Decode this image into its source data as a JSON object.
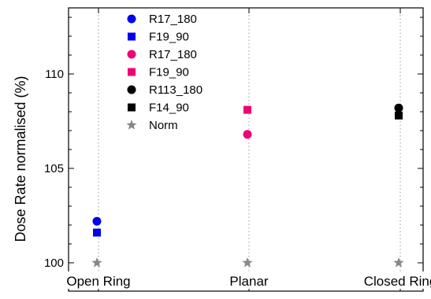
{
  "chart_data": {
    "type": "scatter",
    "categories": [
      "Open Ring",
      "Planar",
      "Closed Ring"
    ],
    "ylabel": "Dose Rate normalised (%)",
    "ylim": [
      98.5,
      113.5
    ],
    "yticks": [
      100,
      105,
      110
    ],
    "grid": "vertical dotted",
    "legend_position": "top-left",
    "series": [
      {
        "name": "R17_180",
        "marker": "circle",
        "color": "#0000ee",
        "values": [
          102.2,
          null,
          null
        ]
      },
      {
        "name": "F19_90",
        "marker": "square",
        "color": "#0000ee",
        "values": [
          101.6,
          null,
          null
        ]
      },
      {
        "name": "R17_180",
        "marker": "circle",
        "color": "#ee0077",
        "values": [
          null,
          106.8,
          null
        ]
      },
      {
        "name": "F19_90",
        "marker": "square",
        "color": "#ee0077",
        "values": [
          null,
          108.1,
          null
        ]
      },
      {
        "name": "R113_180",
        "marker": "circle",
        "color": "#000000",
        "values": [
          null,
          null,
          108.2
        ]
      },
      {
        "name": "F14_90",
        "marker": "square",
        "color": "#000000",
        "values": [
          null,
          null,
          107.8
        ]
      },
      {
        "name": "Norm",
        "marker": "star",
        "color": "#888888",
        "values": [
          100,
          100,
          100
        ]
      }
    ]
  }
}
